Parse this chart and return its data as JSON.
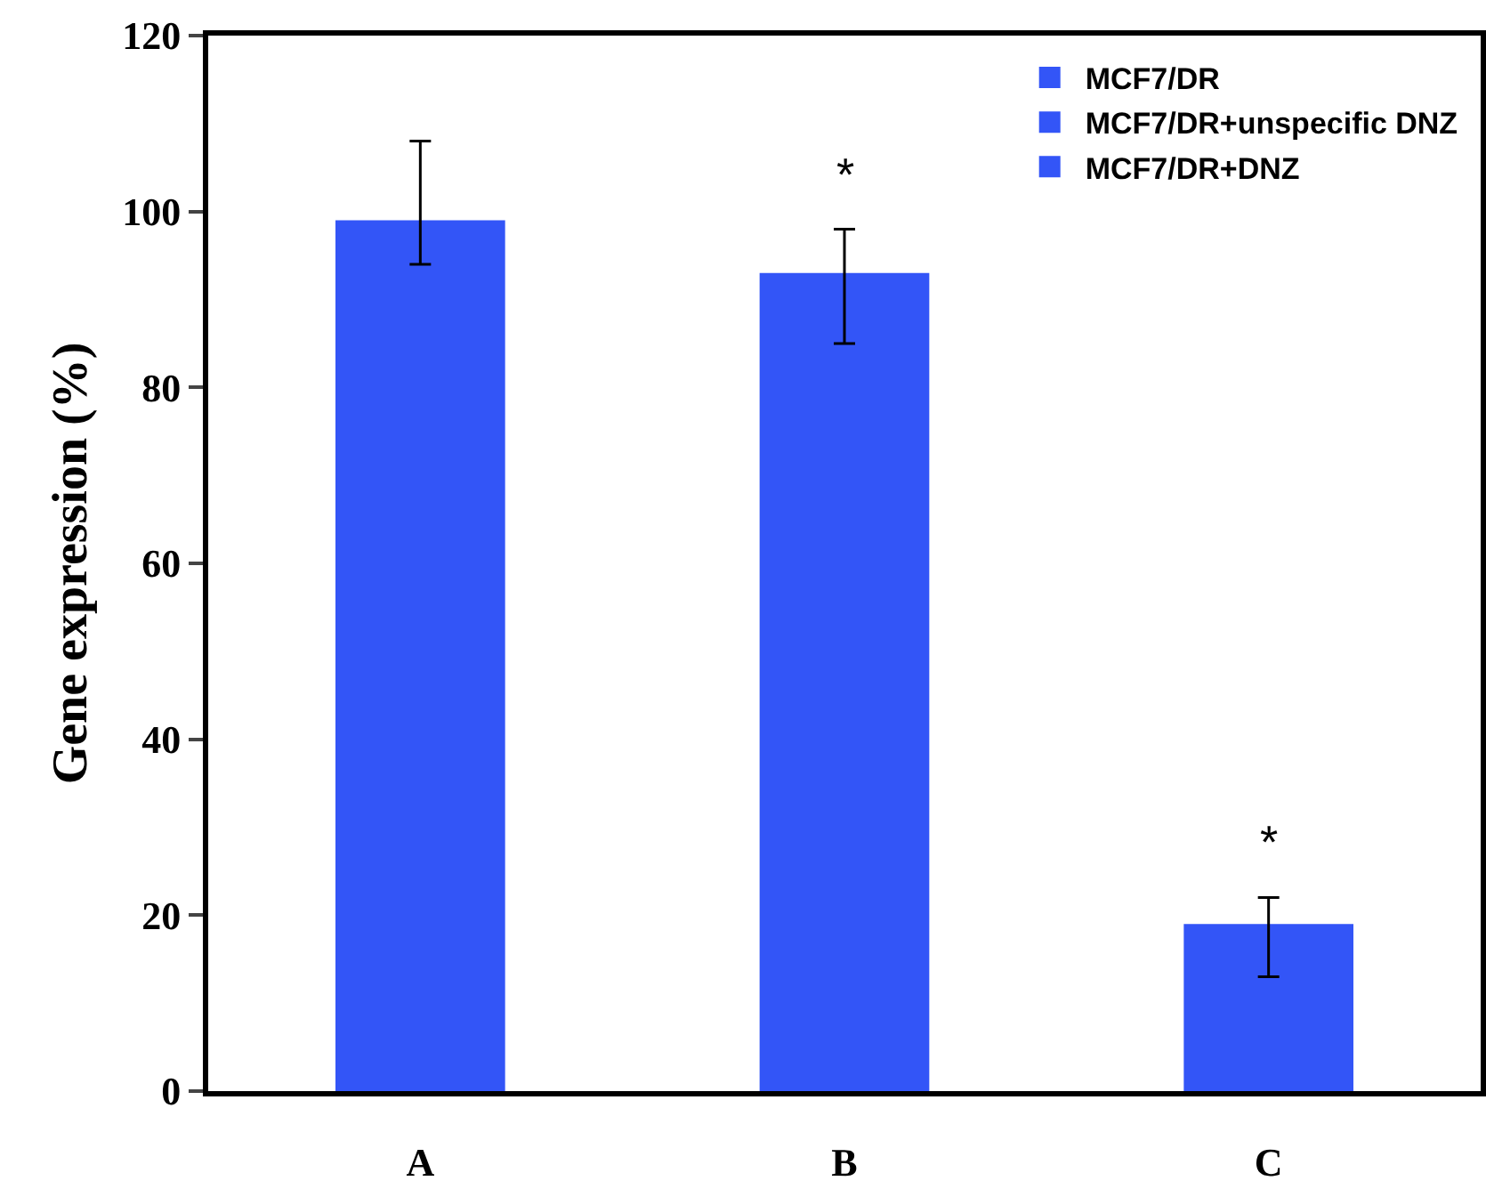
{
  "chart_data": {
    "type": "bar",
    "ylabel": "Gene expression (%)",
    "categories": [
      "A",
      "B",
      "C"
    ],
    "series": [
      {
        "name": "MCF7/DR",
        "color": "#3355f7",
        "values": [
          99,
          null,
          null
        ],
        "errors": [
          [
            94,
            108
          ],
          null,
          null
        ]
      },
      {
        "name": "MCF7/DR+unspecific DNZ",
        "color": "#3355f7",
        "values": [
          null,
          93,
          null
        ],
        "errors": [
          null,
          [
            85,
            98
          ],
          null
        ]
      },
      {
        "name": "MCF7/DR+DNZ",
        "color": "#3355f7",
        "values": [
          null,
          null,
          19
        ],
        "errors": [
          null,
          null,
          [
            13,
            22
          ]
        ]
      }
    ],
    "ylim": [
      0,
      120
    ],
    "yticks": [
      0,
      20,
      40,
      60,
      80,
      100,
      120
    ],
    "grid": false,
    "legend": "top right",
    "annotations": [
      {
        "text": "*",
        "x": "B",
        "y": 98
      },
      {
        "text": "*",
        "x": "C",
        "y": 22
      }
    ]
  }
}
